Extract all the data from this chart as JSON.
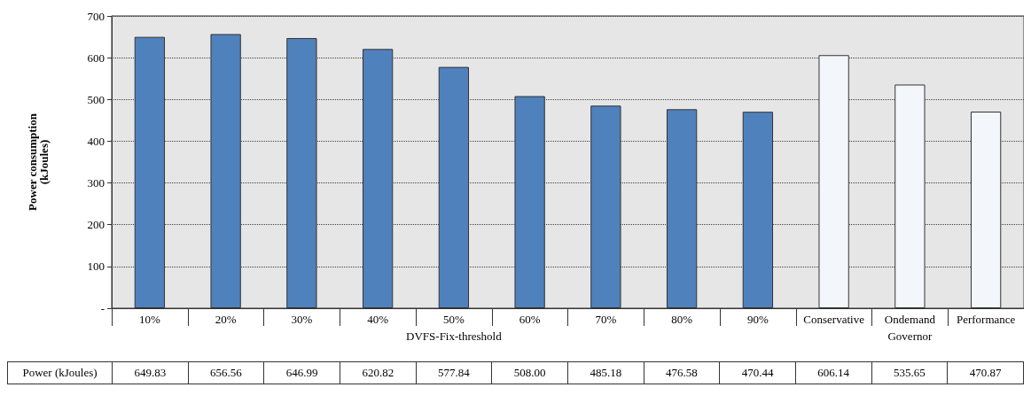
{
  "chart_data": {
    "type": "bar",
    "ylabel": "Power consumption\n(kJoules)",
    "categories": [
      "10%",
      "20%",
      "30%",
      "40%",
      "50%",
      "60%",
      "70%",
      "80%",
      "90%",
      "Conservative",
      "Ondemand",
      "Performance"
    ],
    "series": [
      {
        "name": "Power (kJoules)",
        "values": [
          649.83,
          656.56,
          646.99,
          620.82,
          577.84,
          508.0,
          485.18,
          476.58,
          470.44,
          606.14,
          535.65,
          470.87
        ],
        "value_labels": [
          "649.83",
          "656.56",
          "646.99",
          "620.82",
          "577.84",
          "508.00",
          "485.18",
          "476.58",
          "470.44",
          "606.14",
          "535.65",
          "470.87"
        ],
        "colors": [
          "#4f81bd",
          "#4f81bd",
          "#4f81bd",
          "#4f81bd",
          "#4f81bd",
          "#4f81bd",
          "#4f81bd",
          "#4f81bd",
          "#4f81bd",
          "#f3f6fa",
          "#f3f6fa",
          "#f3f6fa"
        ]
      }
    ],
    "ylim": [
      0,
      700
    ],
    "yticks": [
      {
        "value": 0,
        "label": "-"
      },
      100,
      200,
      300,
      400,
      500,
      600,
      700
    ],
    "grid": "y",
    "annotations": [
      "DVFS-Fix-threshold",
      "Governor"
    ]
  }
}
